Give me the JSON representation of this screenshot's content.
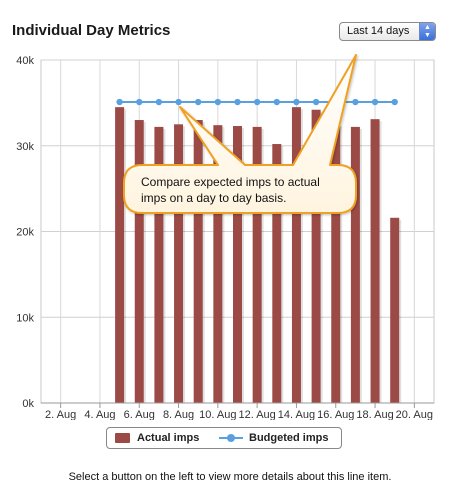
{
  "title": "Individual Day Metrics",
  "range_select": {
    "selected": "Last 14 days"
  },
  "callout": {
    "line1": "Compare expected imps to actual",
    "line2": "imps on a day to day basis."
  },
  "footer": "Select a button on the left to view more details about this line item.",
  "legend": {
    "bar_label": "Actual imps",
    "line_label": "Budgeted imps"
  },
  "chart_data": {
    "type": "bar",
    "x_ticks": [
      "2. Aug",
      "4. Aug",
      "6. Aug",
      "8. Aug",
      "10. Aug",
      "12. Aug",
      "14. Aug",
      "16. Aug",
      "18. Aug",
      "20. Aug"
    ],
    "y_ticks": [
      "0k",
      "10k",
      "20k",
      "30k",
      "40k"
    ],
    "ylim": [
      0,
      40000
    ],
    "xlim_days": [
      1,
      21
    ],
    "bar_color": "#9c4a45",
    "line_color": "#5aa0e0",
    "series": [
      {
        "name": "Actual imps",
        "type": "bar",
        "x": [
          5,
          6,
          7,
          8,
          9,
          10,
          11,
          12,
          13,
          14,
          15,
          16,
          17,
          18,
          19
        ],
        "values": [
          34500,
          33000,
          32200,
          32500,
          33000,
          32400,
          32300,
          32200,
          30200,
          34500,
          34200,
          32500,
          32200,
          33100,
          21600
        ]
      },
      {
        "name": "Budgeted imps",
        "type": "line",
        "x": [
          5,
          6,
          7,
          8,
          9,
          10,
          11,
          12,
          13,
          14,
          15,
          16,
          17,
          18,
          19
        ],
        "values": [
          35100,
          35100,
          35100,
          35100,
          35100,
          35100,
          35100,
          35100,
          35100,
          35100,
          35100,
          35100,
          35100,
          35100,
          35100
        ]
      }
    ]
  }
}
